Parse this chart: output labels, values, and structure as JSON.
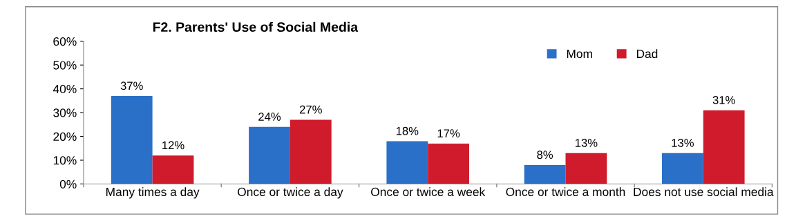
{
  "chart_data": {
    "type": "bar",
    "title": "F2. Parents' Use of Social Media",
    "categories": [
      "Many times a day",
      "Once or twice a day",
      "Once or twice a week",
      "Once or twice a month",
      "Does not use social media"
    ],
    "series": [
      {
        "name": "Mom",
        "color": "#2b70c8",
        "values": [
          37,
          24,
          18,
          8,
          13
        ],
        "value_labels": [
          "37%",
          "24%",
          "18%",
          "8%",
          "13%"
        ]
      },
      {
        "name": "Dad",
        "color": "#cf1b2b",
        "values": [
          12,
          27,
          17,
          13,
          31
        ],
        "value_labels": [
          "12%",
          "27%",
          "17%",
          "13%",
          "31%"
        ]
      }
    ],
    "ylim": [
      0,
      60
    ],
    "yticks": [
      {
        "value": 0,
        "label": "0%"
      },
      {
        "value": 10,
        "label": "10%"
      },
      {
        "value": 20,
        "label": "20%"
      },
      {
        "value": 30,
        "label": "30%"
      },
      {
        "value": 40,
        "label": "40%"
      },
      {
        "value": 50,
        "label": "50%"
      },
      {
        "value": 60,
        "label": "60%"
      }
    ],
    "legend": "top right",
    "grid": false
  }
}
